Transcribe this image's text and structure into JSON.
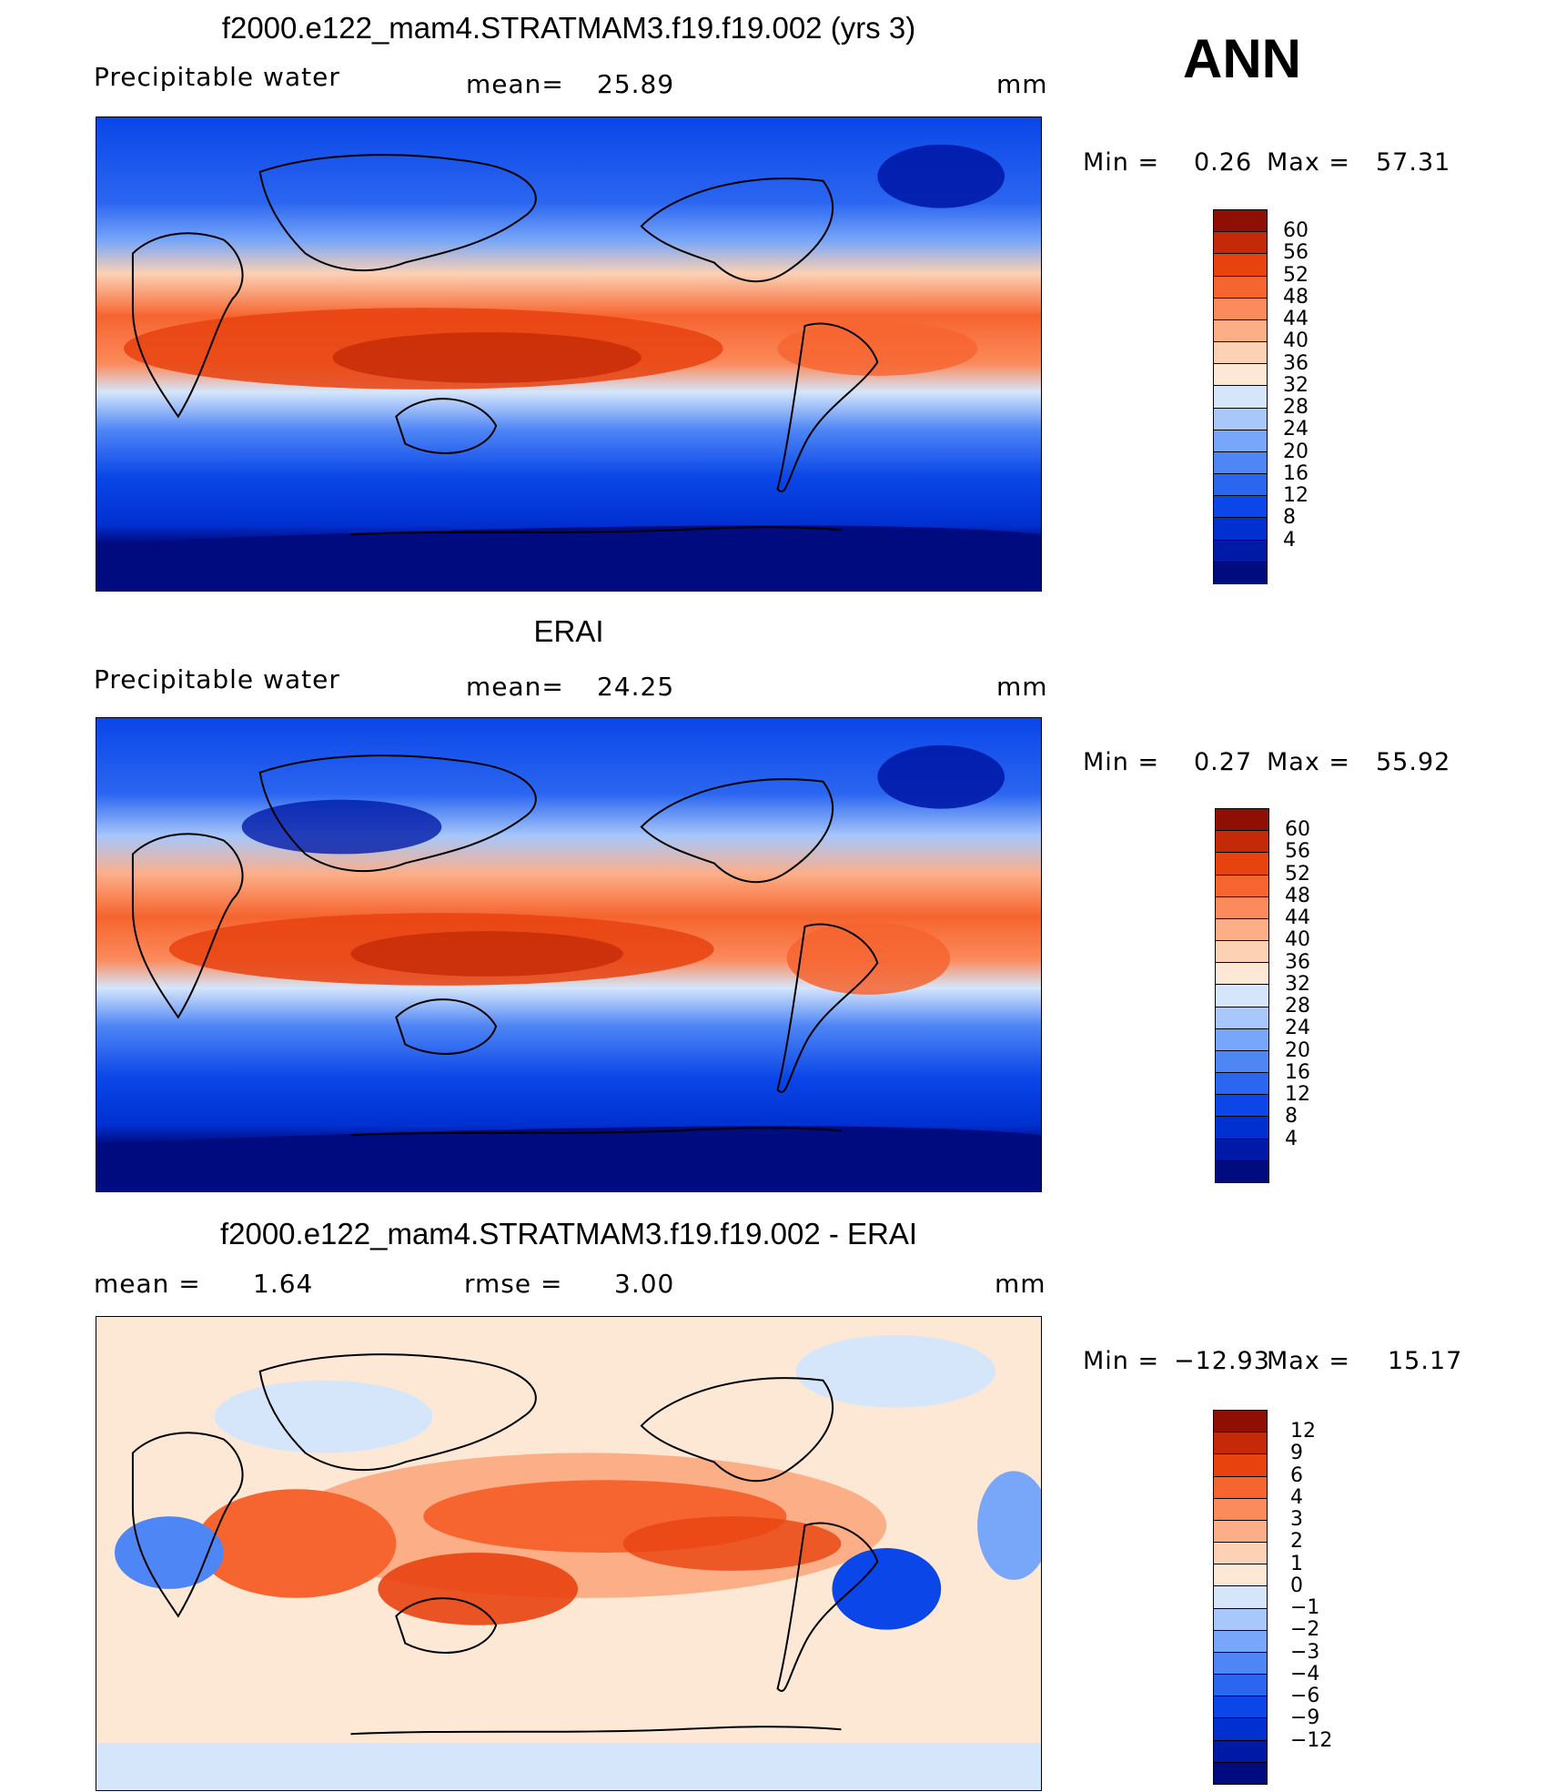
{
  "season": "ANN",
  "colors": {
    "abs_scale": [
      "#000b80",
      "#001aa8",
      "#0030d0",
      "#0a46e8",
      "#2b66f0",
      "#4f86f5",
      "#78a6f8",
      "#a8c7fa",
      "#d5e6fb",
      "#fde8d6",
      "#fcd1b4",
      "#fcae87",
      "#fb8a5c",
      "#f6642f",
      "#e8420f",
      "#c42a08",
      "#8f0f05"
    ],
    "diff_scale": [
      "#000b80",
      "#001aa8",
      "#0030d0",
      "#0a46e8",
      "#2b66f0",
      "#4f86f5",
      "#78a6f8",
      "#a8c7fa",
      "#d5e6fb",
      "#fde8d6",
      "#fcd1b4",
      "#fcae87",
      "#fb8a5c",
      "#f6642f",
      "#e8420f",
      "#c42a08",
      "#8f0f05"
    ]
  },
  "panels": [
    {
      "title": "f2000.e122_mam4.STRATMAM3.f19.f19.002 (yrs 3)",
      "left_label": "Precipitable  water",
      "mean_label": "mean=",
      "mean_value": "25.89",
      "units": "mm",
      "min_label": "Min  =",
      "min_value": "0.26",
      "max_label": "Max  =",
      "max_value": "57.31",
      "colorbar_ticks": [
        "60",
        "56",
        "52",
        "48",
        "44",
        "40",
        "36",
        "32",
        "28",
        "24",
        "20",
        "16",
        "12",
        "8",
        "4"
      ]
    },
    {
      "title": "ERAI",
      "left_label": "Precipitable  water",
      "mean_label": "mean=",
      "mean_value": "24.25",
      "units": "mm",
      "min_label": "Min  =",
      "min_value": "0.27",
      "max_label": "Max  =",
      "max_value": "55.92",
      "colorbar_ticks": [
        "60",
        "56",
        "52",
        "48",
        "44",
        "40",
        "36",
        "32",
        "28",
        "24",
        "20",
        "16",
        "12",
        "8",
        "4"
      ]
    },
    {
      "title": "f2000.e122_mam4.STRATMAM3.f19.f19.002 - ERAI",
      "left_label": "mean  =",
      "mean_label": "1.64",
      "rmse_label": "rmse  =",
      "rmse_value": "3.00",
      "units": "mm",
      "min_label": "Min  =",
      "min_value": "−12.93",
      "max_label": "Max  =",
      "max_value": "15.17",
      "colorbar_ticks": [
        "12",
        "9",
        "6",
        "4",
        "3",
        "2",
        "1",
        "0",
        "−1",
        "−2",
        "−3",
        "−4",
        "−6",
        "−9",
        "−12"
      ]
    }
  ]
}
